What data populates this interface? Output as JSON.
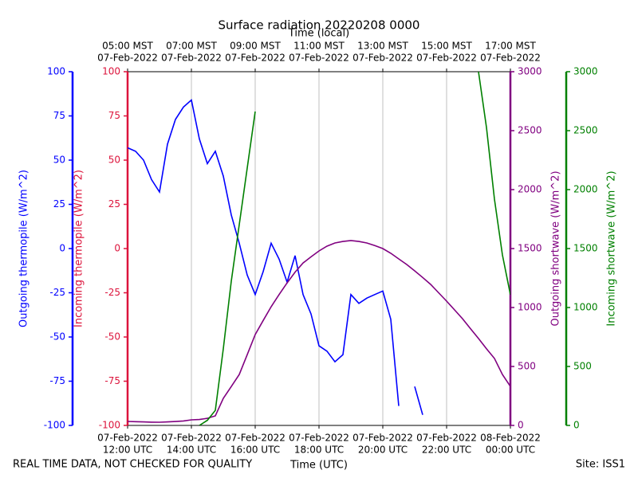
{
  "chart_data": {
    "type": "line",
    "title": "Surface radiation 20220208 0000",
    "footnote": "REAL TIME DATA, NOT CHECKED FOR QUALITY",
    "site": "Site: ISS1",
    "xlabel": "Time (UTC)",
    "x2label": "Time (local)",
    "grid": true,
    "xlim": [
      "2022-02-07T12:00",
      "2022-02-08T00:00"
    ],
    "xticks": [
      {
        "value": "2022-02-07T12:00",
        "label": [
          "07-Feb-2022",
          "12:00 UTC"
        ]
      },
      {
        "value": "2022-02-07T14:00",
        "label": [
          "07-Feb-2022",
          "14:00 UTC"
        ]
      },
      {
        "value": "2022-02-07T16:00",
        "label": [
          "07-Feb-2022",
          "16:00 UTC"
        ]
      },
      {
        "value": "2022-02-07T18:00",
        "label": [
          "07-Feb-2022",
          "18:00 UTC"
        ]
      },
      {
        "value": "2022-02-07T20:00",
        "label": [
          "07-Feb-2022",
          "20:00 UTC"
        ]
      },
      {
        "value": "2022-02-07T22:00",
        "label": [
          "07-Feb-2022",
          "22:00 UTC"
        ]
      },
      {
        "value": "2022-02-08T00:00",
        "label": [
          "08-Feb-2022",
          "00:00 UTC"
        ]
      }
    ],
    "x2ticks": [
      {
        "value": "2022-02-07T12:00",
        "label": [
          "05:00 MST",
          "07-Feb-2022"
        ]
      },
      {
        "value": "2022-02-07T14:00",
        "label": [
          "07:00 MST",
          "07-Feb-2022"
        ]
      },
      {
        "value": "2022-02-07T16:00",
        "label": [
          "09:00 MST",
          "07-Feb-2022"
        ]
      },
      {
        "value": "2022-02-07T18:00",
        "label": [
          "11:00 MST",
          "07-Feb-2022"
        ]
      },
      {
        "value": "2022-02-07T20:00",
        "label": [
          "13:00 MST",
          "07-Feb-2022"
        ]
      },
      {
        "value": "2022-02-07T22:00",
        "label": [
          "15:00 MST",
          "07-Feb-2022"
        ]
      },
      {
        "value": "2022-02-08T00:00",
        "label": [
          "17:00 MST",
          "07-Feb-2022"
        ]
      }
    ],
    "yaxes": [
      {
        "label": "Outgoing thermopile (W/m^2)",
        "color": "#0000ff",
        "ylim": [
          -100,
          100
        ],
        "yticks": [
          -100,
          -75,
          -50,
          -25,
          0,
          25,
          50,
          75,
          100
        ]
      },
      {
        "label": "Incoming thermopile (W/m^2)",
        "color": "#dc143c",
        "ylim": [
          -100,
          100
        ],
        "yticks": [
          -100,
          -75,
          -50,
          -25,
          0,
          25,
          50,
          75,
          100
        ]
      },
      {
        "label": "Outgoing shortwave (W/m^2)",
        "color": "#800080",
        "ylim": [
          0,
          3000
        ],
        "yticks": [
          0,
          500,
          1000,
          1500,
          2000,
          2500,
          3000
        ]
      },
      {
        "label": "Incoming shortwave (W/m^2)",
        "color": "#008000",
        "ylim": [
          0,
          3000
        ],
        "yticks": [
          0,
          500,
          1000,
          1500,
          2000,
          2500,
          3000
        ]
      }
    ],
    "x": [
      "2022-02-07T12:00",
      "2022-02-07T12:15",
      "2022-02-07T12:30",
      "2022-02-07T12:45",
      "2022-02-07T13:00",
      "2022-02-07T13:15",
      "2022-02-07T13:30",
      "2022-02-07T13:45",
      "2022-02-07T14:00",
      "2022-02-07T14:15",
      "2022-02-07T14:30",
      "2022-02-07T14:45",
      "2022-02-07T15:00",
      "2022-02-07T15:15",
      "2022-02-07T15:30",
      "2022-02-07T15:45",
      "2022-02-07T16:00",
      "2022-02-07T16:15",
      "2022-02-07T16:30",
      "2022-02-07T16:45",
      "2022-02-07T17:00",
      "2022-02-07T17:15",
      "2022-02-07T17:30",
      "2022-02-07T17:45",
      "2022-02-07T18:00",
      "2022-02-07T18:15",
      "2022-02-07T18:30",
      "2022-02-07T18:45",
      "2022-02-07T19:00",
      "2022-02-07T19:15",
      "2022-02-07T19:30",
      "2022-02-07T19:45",
      "2022-02-07T20:00",
      "2022-02-07T20:15",
      "2022-02-07T20:30",
      "2022-02-07T20:45",
      "2022-02-07T21:00",
      "2022-02-07T21:15",
      "2022-02-07T21:30",
      "2022-02-07T21:45",
      "2022-02-07T22:00",
      "2022-02-07T22:15",
      "2022-02-07T22:30",
      "2022-02-07T22:45",
      "2022-02-07T23:00",
      "2022-02-07T23:15",
      "2022-02-07T23:30",
      "2022-02-07T23:45",
      "2022-02-08T00:00"
    ],
    "series": [
      {
        "color": "#0000ff",
        "axis": 0,
        "values": [
          57,
          55,
          50,
          39,
          32,
          59,
          73,
          80,
          84,
          62,
          48,
          55,
          41,
          19,
          3,
          -15,
          -26,
          -13,
          3,
          -6,
          -19,
          -4,
          -26,
          -37,
          -55,
          -58,
          -64,
          -60,
          -26,
          -31,
          -28,
          -26,
          -24,
          -40,
          -89,
          null,
          -78,
          -94,
          null,
          null,
          null,
          null,
          null,
          null,
          null,
          null,
          null,
          null,
          null
        ]
      },
      {
        "color": "#800080",
        "axis": 2,
        "values": [
          34,
          32,
          30,
          28,
          27,
          30,
          33,
          38,
          47,
          50,
          60,
          81,
          230,
          330,
          432,
          600,
          770,
          890,
          1007,
          1110,
          1209,
          1300,
          1378,
          1430,
          1480,
          1520,
          1547,
          1560,
          1568,
          1560,
          1547,
          1525,
          1500,
          1460,
          1412,
          1365,
          1311,
          1255,
          1196,
          1125,
          1054,
          980,
          905,
          820,
          737,
          650,
          568,
          432,
          331
        ]
      },
      {
        "color": "#008000",
        "axis": 3,
        "values": [
          null,
          null,
          null,
          null,
          null,
          null,
          null,
          null,
          null,
          0,
          43,
          128,
          650,
          1223,
          1703,
          2183,
          2662,
          null,
          null,
          null,
          null,
          null,
          null,
          null,
          null,
          null,
          null,
          null,
          null,
          null,
          null,
          null,
          null,
          null,
          null,
          null,
          null,
          null,
          null,
          null,
          null,
          null,
          null,
          null,
          3000,
          2527,
          1919,
          1446,
          1108
        ]
      }
    ]
  }
}
